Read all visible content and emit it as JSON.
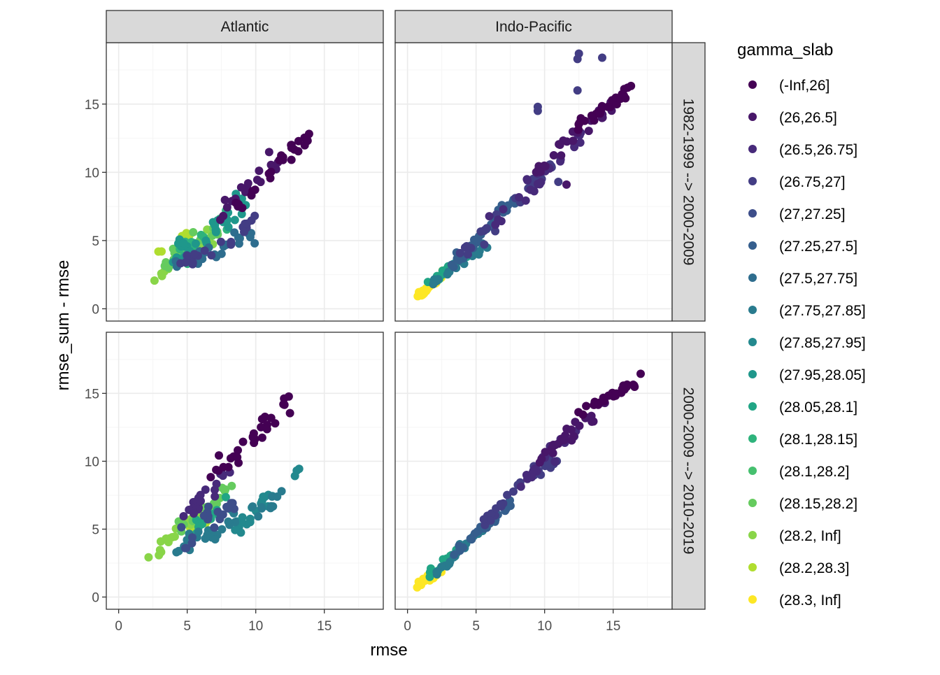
{
  "colors": {
    "panel_border": "#333333",
    "strip_fill": "#d9d9d9",
    "grid_major": "#ebebeb",
    "grid_minor": "#f5f5f5"
  },
  "chart_data": {
    "type": "scatter",
    "xlabel": "rmse",
    "ylabel": "rmse_sum - rmse",
    "xlim": [
      -0.9,
      19.3
    ],
    "ylim": [
      -0.9,
      19.5
    ],
    "x_ticks": [
      0,
      5,
      10,
      15
    ],
    "y_ticks": [
      0,
      5,
      10,
      15
    ],
    "facet_cols": [
      "Atlantic",
      "Indo-Pacific"
    ],
    "facet_rows": [
      "1982-1999 --> 2000-2009",
      "2000-2009 --> 2010-2019"
    ],
    "legend": {
      "title": "gamma_slab",
      "entries": [
        {
          "label": "(-Inf,26]",
          "color": "#440154"
        },
        {
          "label": "(26,26.5]",
          "color": "#481769"
        },
        {
          "label": "(26.5,26.75]",
          "color": "#472A7A"
        },
        {
          "label": "(26.75,27]",
          "color": "#433D84"
        },
        {
          "label": "(27,27.25]",
          "color": "#3D4E8A"
        },
        {
          "label": "(27.25,27.5]",
          "color": "#355E8D"
        },
        {
          "label": "(27.5,27.75]",
          "color": "#2E6D8E"
        },
        {
          "label": "(27.75,27.85]",
          "color": "#297B8E"
        },
        {
          "label": "(27.85,27.95]",
          "color": "#23898E"
        },
        {
          "label": "(27.95,28.05]",
          "color": "#1F978B"
        },
        {
          "label": "(28.05,28.1]",
          "color": "#21A585"
        },
        {
          "label": "(28.1,28.15]",
          "color": "#2EB37C"
        },
        {
          "label": "(28.1,28.2]",
          "color": "#46C06F"
        },
        {
          "label": "(28.15,28.2]",
          "color": "#65CB5E"
        },
        {
          "label": "(28.2, Inf]",
          "color": "#89D548"
        },
        {
          "label": "(28.2,28.3]",
          "color": "#B0DD2F"
        },
        {
          "label": "(28.3, Inf]",
          "color": "#FDE725"
        }
      ]
    },
    "panels": [
      {
        "col": "Atlantic",
        "row": "1982-1999 --> 2000-2009",
        "clusters": [
          {
            "class": 0,
            "n": 26,
            "x": [
              8.5,
              14.5
            ],
            "y": [
              7.5,
              13.3
            ],
            "slope": 0.95,
            "noise": 0.6
          },
          {
            "class": 1,
            "n": 18,
            "x": [
              7.0,
              11.5
            ],
            "y": [
              6.5,
              11.0
            ],
            "slope": 0.9,
            "noise": 0.7
          },
          {
            "class": 3,
            "n": 20,
            "x": [
              4.5,
              10.0
            ],
            "y": [
              3.2,
              6.5
            ],
            "slope": 0.3,
            "noise": 0.7
          },
          {
            "class": 6,
            "n": 24,
            "x": [
              4.0,
              10.0
            ],
            "y": [
              3.2,
              5.5
            ],
            "slope": 0.2,
            "noise": 0.6
          },
          {
            "class": 9,
            "n": 30,
            "x": [
              4.0,
              9.0
            ],
            "y": [
              3.5,
              7.8
            ],
            "slope": 0.4,
            "noise": 1.0
          },
          {
            "class": 11,
            "n": 20,
            "x": [
              4.0,
              8.5
            ],
            "y": [
              3.5,
              7.0
            ],
            "slope": 0.4,
            "noise": 0.9
          },
          {
            "class": 13,
            "n": 16,
            "x": [
              3.5,
              7.5
            ],
            "y": [
              3.2,
              6.0
            ],
            "slope": 0.3,
            "noise": 0.8
          },
          {
            "class": 14,
            "n": 22,
            "x": [
              2.6,
              7.0
            ],
            "y": [
              2.1,
              5.5
            ],
            "slope": 0.6,
            "noise": 0.6
          },
          {
            "class": 15,
            "n": 10,
            "x": [
              3.0,
              7.0
            ],
            "y": [
              4.0,
              6.0
            ],
            "slope": 0.3,
            "noise": 0.6
          }
        ]
      },
      {
        "col": "Indo-Pacific",
        "row": "1982-1999 --> 2000-2009",
        "clusters": [
          {
            "class": 0,
            "n": 26,
            "x": [
              12.0,
              16.5
            ],
            "y": [
              13.0,
              16.2
            ],
            "slope": 0.85,
            "noise": 0.4
          },
          {
            "class": 1,
            "n": 24,
            "x": [
              9.0,
              15.0
            ],
            "y": [
              10.0,
              15.0
            ],
            "slope": 0.9,
            "noise": 0.6
          },
          {
            "class": 2,
            "n": 26,
            "x": [
              6.0,
              13.0
            ],
            "y": [
              6.0,
              13.0
            ],
            "slope": 1.0,
            "noise": 0.7
          },
          {
            "class": 3,
            "n": 30,
            "x": [
              4.0,
              11.0
            ],
            "y": [
              4.0,
              11.0
            ],
            "slope": 1.0,
            "noise": 0.6
          },
          {
            "class": 5,
            "n": 28,
            "x": [
              3.0,
              8.0
            ],
            "y": [
              3.0,
              8.0
            ],
            "slope": 1.0,
            "noise": 0.5
          },
          {
            "class": 7,
            "n": 24,
            "x": [
              2.0,
              6.0
            ],
            "y": [
              2.0,
              5.0
            ],
            "slope": 0.9,
            "noise": 0.4
          },
          {
            "class": 10,
            "n": 16,
            "x": [
              1.5,
              4.5
            ],
            "y": [
              1.8,
              4.0
            ],
            "slope": 0.8,
            "noise": 0.3
          },
          {
            "class": 16,
            "n": 30,
            "x": [
              0.7,
              2.6
            ],
            "y": [
              0.8,
              2.6
            ],
            "slope": 0.9,
            "noise": 0.25
          }
        ],
        "points": [
          {
            "x": 12.5,
            "y": 18.7,
            "class": 3
          },
          {
            "x": 12.4,
            "y": 18.3,
            "class": 3
          },
          {
            "x": 14.2,
            "y": 18.4,
            "class": 3
          },
          {
            "x": 12.4,
            "y": 16.0,
            "class": 3
          },
          {
            "x": 9.5,
            "y": 14.8,
            "class": 3
          },
          {
            "x": 9.5,
            "y": 14.5,
            "class": 3
          },
          {
            "x": 11.6,
            "y": 9.1,
            "class": 1
          },
          {
            "x": 11.0,
            "y": 9.3,
            "class": 3
          }
        ]
      },
      {
        "col": "Atlantic",
        "row": "2000-2009 --> 2010-2019",
        "clusters": [
          {
            "class": 0,
            "n": 30,
            "x": [
              6.5,
              12.5
            ],
            "y": [
              8.5,
              14.5
            ],
            "slope": 1.1,
            "noise": 0.8
          },
          {
            "class": 2,
            "n": 20,
            "x": [
              5.0,
              8.5
            ],
            "y": [
              6.0,
              10.0
            ],
            "slope": 0.9,
            "noise": 0.9
          },
          {
            "class": 4,
            "n": 20,
            "x": [
              4.5,
              9.0
            ],
            "y": [
              3.8,
              7.5
            ],
            "slope": 0.3,
            "noise": 1.0
          },
          {
            "class": 7,
            "n": 30,
            "x": [
              4.0,
              12.5
            ],
            "y": [
              3.5,
              7.5
            ],
            "slope": 0.3,
            "noise": 0.8
          },
          {
            "class": 8,
            "n": 22,
            "x": [
              8.0,
              13.0
            ],
            "y": [
              4.5,
              9.5
            ],
            "slope": 0.9,
            "noise": 0.6
          },
          {
            "class": 10,
            "n": 16,
            "x": [
              4.5,
              8.5
            ],
            "y": [
              4.0,
              7.5
            ],
            "slope": 0.5,
            "noise": 0.8
          },
          {
            "class": 13,
            "n": 16,
            "x": [
              4.5,
              8.0
            ],
            "y": [
              5.0,
              8.0
            ],
            "slope": 0.5,
            "noise": 0.7
          },
          {
            "class": 14,
            "n": 20,
            "x": [
              1.9,
              7.0
            ],
            "y": [
              2.7,
              7.0
            ],
            "slope": 0.8,
            "noise": 0.5
          },
          {
            "class": 15,
            "n": 10,
            "x": [
              5.0,
              6.5
            ],
            "y": [
              5.0,
              6.0
            ],
            "slope": 0.4,
            "noise": 0.4
          }
        ]
      },
      {
        "col": "Indo-Pacific",
        "row": "2000-2009 --> 2010-2019",
        "clusters": [
          {
            "class": 0,
            "n": 28,
            "x": [
              12.5,
              17.0
            ],
            "y": [
              13.5,
              16.2
            ],
            "slope": 0.7,
            "noise": 0.4
          },
          {
            "class": 1,
            "n": 24,
            "x": [
              9.5,
              14.5
            ],
            "y": [
              10.0,
              14.5
            ],
            "slope": 0.9,
            "noise": 0.6
          },
          {
            "class": 2,
            "n": 20,
            "x": [
              8.0,
              12.5
            ],
            "y": [
              8.0,
              12.5
            ],
            "slope": 1.0,
            "noise": 0.5
          },
          {
            "class": 3,
            "n": 28,
            "x": [
              5.5,
              11.0
            ],
            "y": [
              5.5,
              10.5
            ],
            "slope": 0.95,
            "noise": 0.5
          },
          {
            "class": 5,
            "n": 28,
            "x": [
              3.0,
              7.5
            ],
            "y": [
              2.8,
              7.0
            ],
            "slope": 1.0,
            "noise": 0.4
          },
          {
            "class": 7,
            "n": 22,
            "x": [
              2.0,
              5.5
            ],
            "y": [
              1.8,
              5.0
            ],
            "slope": 0.95,
            "noise": 0.3
          },
          {
            "class": 10,
            "n": 16,
            "x": [
              1.5,
              4.0
            ],
            "y": [
              1.5,
              3.8
            ],
            "slope": 0.9,
            "noise": 0.3
          },
          {
            "class": 16,
            "n": 28,
            "x": [
              0.5,
              2.4
            ],
            "y": [
              0.6,
              2.0
            ],
            "slope": 0.8,
            "noise": 0.25
          }
        ]
      }
    ]
  }
}
